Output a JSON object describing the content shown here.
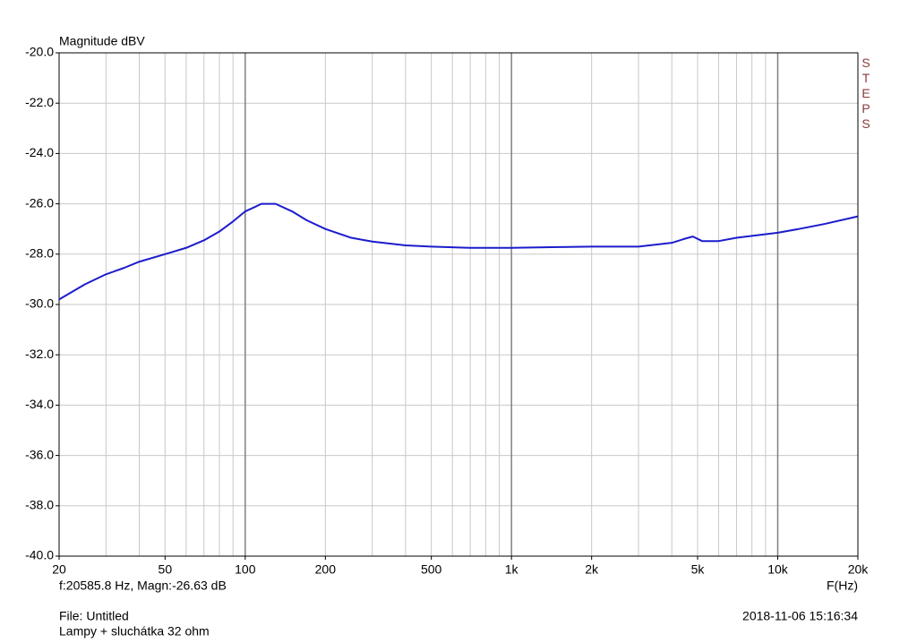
{
  "chart_data": {
    "type": "line",
    "ylabel": "Magnitude dBV",
    "xlabel": "F(Hz)",
    "watermark": "STEPS",
    "cursor_readout": "f:20585.8 Hz, Magn:-26.63 dB",
    "file": "File: Untitled",
    "description": "Lampy + sluchátka 32 ohm",
    "timestamp": "2018-11-06 15:16:34",
    "x": [
      20,
      25,
      30,
      35,
      40,
      50,
      60,
      70,
      80,
      90,
      100,
      110,
      115,
      130,
      150,
      170,
      200,
      250,
      300,
      400,
      500,
      700,
      1000,
      1500,
      2000,
      3000,
      4000,
      4500,
      4800,
      5200,
      6000,
      7000,
      10000,
      12000,
      15000,
      20000
    ],
    "values": [
      -29.8,
      -29.2,
      -28.8,
      -28.55,
      -28.3,
      -28.0,
      -27.75,
      -27.45,
      -27.1,
      -26.7,
      -26.3,
      -26.1,
      -26.0,
      -26.0,
      -26.3,
      -26.65,
      -27.0,
      -27.35,
      -27.5,
      -27.65,
      -27.7,
      -27.75,
      -27.75,
      -27.72,
      -27.7,
      -27.7,
      -27.55,
      -27.38,
      -27.3,
      -27.48,
      -27.48,
      -27.35,
      -27.15,
      -27.0,
      -26.8,
      -26.5
    ],
    "color": "#1c1ccc",
    "xscale": "log",
    "xlim": [
      20,
      20000
    ],
    "xticks": [
      20,
      50,
      100,
      200,
      500,
      {
        "value": 1000,
        "label": "1k"
      },
      {
        "value": 2000,
        "label": "2k"
      },
      {
        "value": 5000,
        "label": "5k"
      },
      {
        "value": 10000,
        "label": "10k"
      },
      {
        "value": 20000,
        "label": "20k"
      }
    ],
    "minor_xticks": [
      30,
      40,
      60,
      70,
      80,
      90,
      300,
      400,
      600,
      700,
      800,
      900,
      3000,
      4000,
      6000,
      7000,
      8000,
      9000
    ],
    "ylim": [
      -40,
      -20
    ],
    "yticks": [
      {
        "value": -40,
        "label": "-40.0"
      },
      {
        "value": -38,
        "label": "-38.0"
      },
      {
        "value": -36,
        "label": "-36.0"
      },
      {
        "value": -34,
        "label": "-34.0"
      },
      {
        "value": -32,
        "label": "-32.0"
      },
      {
        "value": -30,
        "label": "-30.0"
      },
      {
        "value": -28,
        "label": "-28.0"
      },
      {
        "value": -26,
        "label": "-26.0"
      },
      {
        "value": -24,
        "label": "-24.0"
      },
      {
        "value": -22,
        "label": "-22.0"
      },
      {
        "value": -20,
        "label": "-20.0"
      }
    ],
    "grid": true
  }
}
